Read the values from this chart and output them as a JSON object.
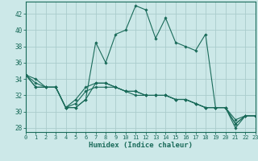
{
  "xlabel": "Humidex (Indice chaleur)",
  "bg_color": "#cce8e8",
  "grid_color": "#aacccc",
  "line_color": "#1a6b5a",
  "xlim": [
    0,
    23
  ],
  "ylim": [
    27.5,
    43.5
  ],
  "xticks": [
    0,
    1,
    2,
    3,
    4,
    5,
    6,
    7,
    8,
    9,
    10,
    11,
    12,
    13,
    14,
    15,
    16,
    17,
    18,
    19,
    20,
    21,
    22,
    23
  ],
  "yticks": [
    28,
    30,
    32,
    34,
    36,
    38,
    40,
    42
  ],
  "series": [
    [
      34.5,
      34.0,
      33.0,
      33.0,
      30.5,
      30.5,
      31.5,
      38.5,
      36.0,
      39.5,
      40.0,
      43.0,
      42.5,
      39.0,
      41.5,
      38.5,
      38.0,
      37.5,
      39.5,
      30.5,
      30.5,
      28.0,
      29.5,
      29.5
    ],
    [
      34.5,
      33.5,
      33.0,
      33.0,
      30.5,
      30.5,
      31.5,
      33.5,
      33.5,
      33.0,
      32.5,
      32.5,
      32.0,
      32.0,
      32.0,
      31.5,
      31.5,
      31.0,
      30.5,
      30.5,
      30.5,
      28.5,
      29.5,
      29.5
    ],
    [
      34.5,
      33.0,
      33.0,
      33.0,
      30.5,
      31.0,
      32.5,
      33.0,
      33.0,
      33.0,
      32.5,
      32.0,
      32.0,
      32.0,
      32.0,
      31.5,
      31.5,
      31.0,
      30.5,
      30.5,
      30.5,
      29.0,
      29.5,
      29.5
    ],
    [
      34.5,
      33.0,
      33.0,
      33.0,
      30.5,
      31.5,
      33.0,
      33.5,
      33.5,
      33.0,
      32.5,
      32.5,
      32.0,
      32.0,
      32.0,
      31.5,
      31.5,
      31.0,
      30.5,
      30.5,
      30.5,
      28.5,
      29.5,
      29.5
    ]
  ]
}
